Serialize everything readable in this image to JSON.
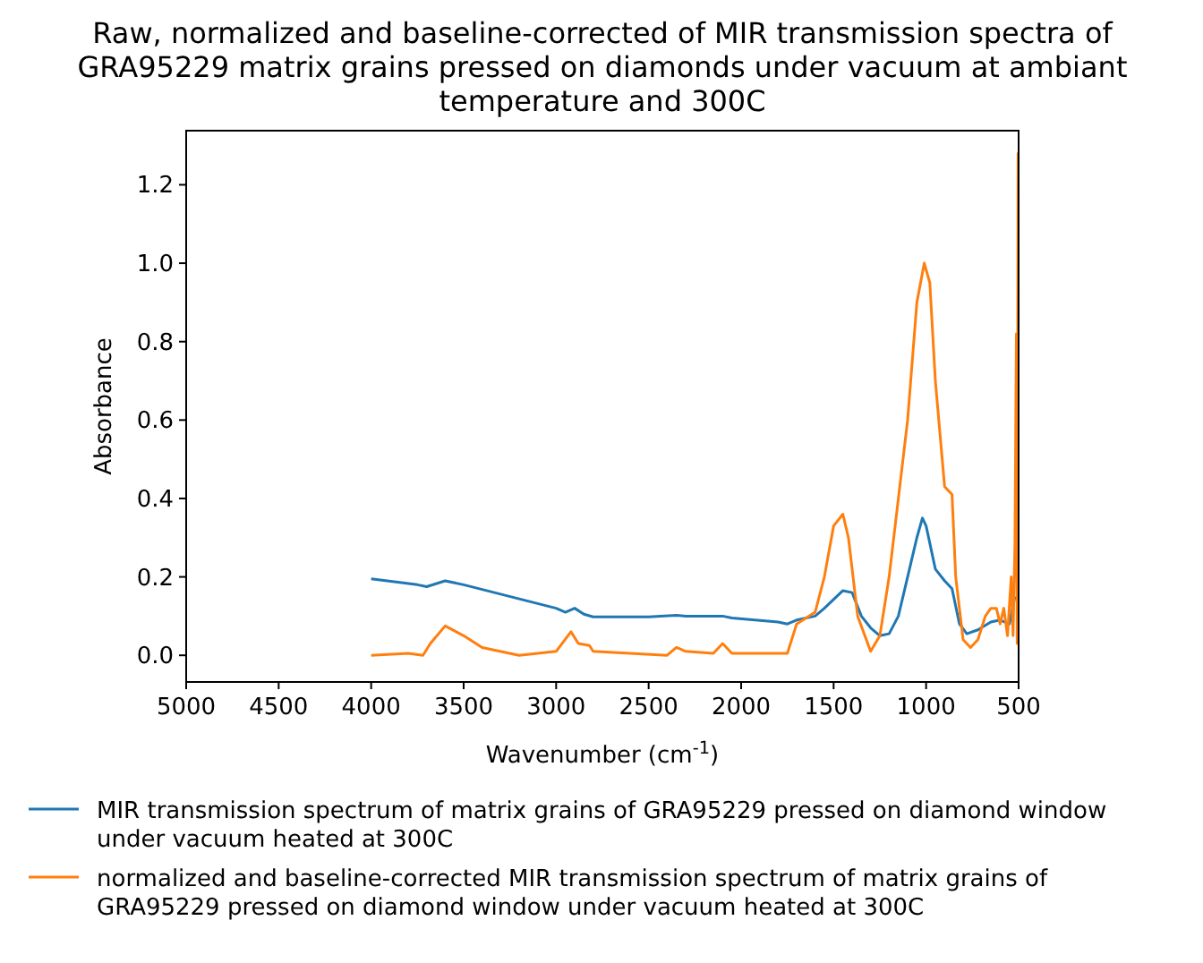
{
  "chart_data": {
    "type": "line",
    "title": "Raw, normalized and baseline-corrected of MIR transmission spectra of\nGRA95229 matrix grains pressed on diamonds under vacuum at ambiant\ntemperature and 300C",
    "xlabel": "Wavenumber (cm$^{-1}$)",
    "ylabel": "Absorbance",
    "xlim": [
      5000,
      500
    ],
    "xticks": [
      5000,
      4500,
      4000,
      3500,
      3000,
      2500,
      2000,
      1500,
      1000,
      500
    ],
    "ylim": [
      -0.068,
      1.338
    ],
    "yticks": [
      {
        "value": 0,
        "label": "0.0"
      },
      0.2,
      0.4,
      0.6,
      0.8,
      {
        "value": 1,
        "label": "1.0"
      },
      1.2
    ],
    "legend": "bottom",
    "grid": false,
    "series": [
      {
        "name": "MIR transmission spectrum of matrix grains of GRA95229 pressed on diamond window\nunder vacuum heated at 300C",
        "color": "#1f77b4",
        "x": [
          4000,
          3750,
          3700,
          3600,
          3500,
          3000,
          2950,
          2900,
          2850,
          2800,
          2500,
          2350,
          2300,
          2100,
          2050,
          1800,
          1750,
          1700,
          1600,
          1550,
          1450,
          1400,
          1350,
          1300,
          1250,
          1200,
          1150,
          1100,
          1050,
          1020,
          1000,
          950,
          900,
          860,
          820,
          780,
          720,
          650,
          600,
          550,
          520
        ],
        "values": [
          0.195,
          0.18,
          0.175,
          0.19,
          0.18,
          0.12,
          0.11,
          0.12,
          0.105,
          0.098,
          0.098,
          0.102,
          0.1,
          0.1,
          0.095,
          0.085,
          0.08,
          0.09,
          0.1,
          0.12,
          0.165,
          0.16,
          0.1,
          0.07,
          0.05,
          0.055,
          0.1,
          0.2,
          0.3,
          0.35,
          0.33,
          0.22,
          0.19,
          0.17,
          0.08,
          0.055,
          0.065,
          0.085,
          0.09,
          0.08,
          0.15
        ]
      },
      {
        "name": "normalized and baseline-corrected MIR transmission spectrum of matrix grains of\nGRA95229 pressed on diamond window under vacuum heated at 300C",
        "color": "#ff7f0e",
        "x": [
          4000,
          3800,
          3720,
          3680,
          3600,
          3500,
          3400,
          3200,
          3000,
          2920,
          2880,
          2820,
          2800,
          2400,
          2350,
          2300,
          2150,
          2100,
          2050,
          1750,
          1700,
          1600,
          1550,
          1500,
          1450,
          1420,
          1370,
          1300,
          1250,
          1200,
          1100,
          1050,
          1010,
          980,
          950,
          900,
          860,
          840,
          800,
          760,
          720,
          680,
          650,
          620,
          600,
          580,
          560,
          540,
          530,
          520,
          512,
          508,
          503,
          501
        ],
        "values": [
          0,
          0.005,
          0,
          0.03,
          0.075,
          0.05,
          0.02,
          0,
          0.01,
          0.06,
          0.03,
          0.025,
          0.01,
          0,
          0.02,
          0.01,
          0.005,
          0.03,
          0.005,
          0.005,
          0.08,
          0.11,
          0.2,
          0.33,
          0.36,
          0.3,
          0.1,
          0.01,
          0.05,
          0.2,
          0.6,
          0.9,
          1.0,
          0.95,
          0.7,
          0.43,
          0.41,
          0.2,
          0.04,
          0.02,
          0.04,
          0.1,
          0.12,
          0.12,
          0.08,
          0.12,
          0.05,
          0.2,
          0.05,
          0.28,
          0.82,
          0.03,
          1.28,
          0.2
        ]
      }
    ]
  }
}
